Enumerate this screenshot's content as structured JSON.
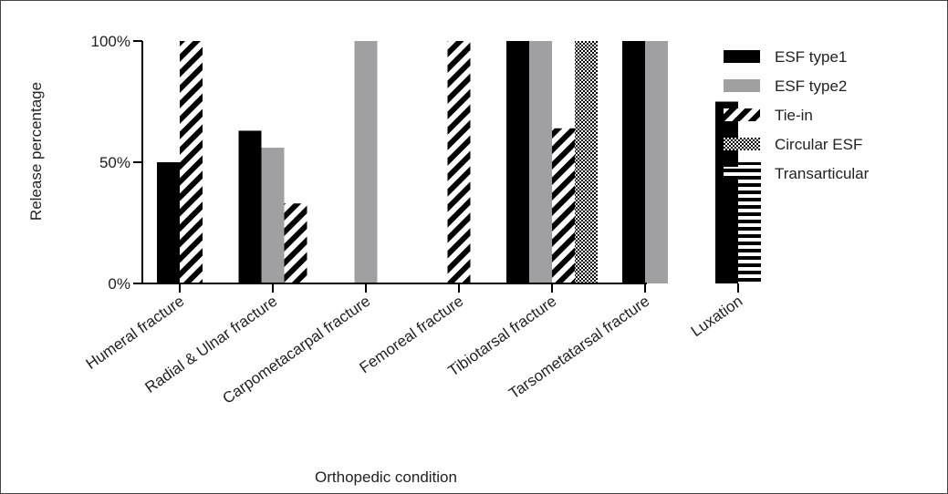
{
  "chart_data": {
    "type": "bar",
    "title": "",
    "xlabel": "Orthopedic condition",
    "ylabel": "Release percentage",
    "ylim": [
      0,
      100
    ],
    "y_ticks": [
      {
        "value": 0,
        "label": "0%"
      },
      {
        "value": 50,
        "label": "50%"
      },
      {
        "value": 100,
        "label": "100%"
      }
    ],
    "grid": false,
    "legend_position": "right",
    "categories": [
      "Humeral fracture",
      "Radial & Ulnar fracture",
      "Carpometacarpal fracture",
      "Femoreal fracture",
      "Tibiotarsal fracture",
      "Tarsometatarsal fracture",
      "Luxation"
    ],
    "series": [
      {
        "name": "ESF type1",
        "pattern": "solid-black",
        "color": "#000000",
        "values": [
          50,
          63,
          null,
          null,
          100,
          100,
          75
        ]
      },
      {
        "name": "ESF type2",
        "pattern": "solid-gray",
        "color": "#a0a0a3",
        "values": [
          null,
          56,
          100,
          null,
          100,
          100,
          null
        ]
      },
      {
        "name": "Tie-in",
        "pattern": "diagonal-stripes",
        "color": "#000000",
        "values": [
          100,
          33,
          null,
          100,
          64,
          null,
          null
        ]
      },
      {
        "name": "Circular ESF",
        "pattern": "checkerboard",
        "color": "#000000",
        "values": [
          null,
          null,
          null,
          null,
          100,
          null,
          null
        ]
      },
      {
        "name": "Transarticular",
        "pattern": "horizontal-stripes",
        "color": "#000000",
        "values": [
          null,
          null,
          null,
          null,
          null,
          null,
          50
        ]
      }
    ]
  }
}
